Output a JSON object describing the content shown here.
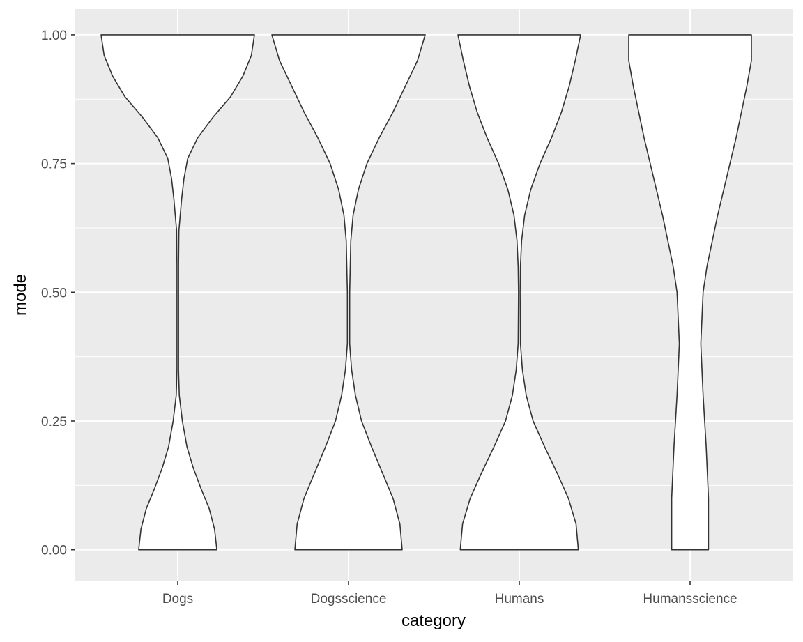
{
  "chart_data": {
    "type": "violin",
    "title": "",
    "xlabel": "category",
    "ylabel": "mode",
    "ylim": [
      -0.06,
      1.05
    ],
    "y_ticks": [
      {
        "value": 0.0,
        "label": "0.00"
      },
      {
        "value": 0.25,
        "label": "0.25"
      },
      {
        "value": 0.5,
        "label": "0.50"
      },
      {
        "value": 0.75,
        "label": "0.75"
      },
      {
        "value": 1.0,
        "label": "1.00"
      }
    ],
    "grid": true,
    "panel_background": "#ebebeb",
    "gridline_color": "#ffffff",
    "violin_fill": "#ffffff",
    "violin_outline": "#333333",
    "categories": [
      "Dogs",
      "Dogsscience",
      "Humans",
      "Humansscience"
    ],
    "violins": [
      {
        "category": "Dogs",
        "profile": [
          [
            0.0,
            0.51
          ],
          [
            0.04,
            0.48
          ],
          [
            0.08,
            0.41
          ],
          [
            0.12,
            0.3
          ],
          [
            0.16,
            0.2
          ],
          [
            0.2,
            0.12
          ],
          [
            0.25,
            0.06
          ],
          [
            0.3,
            0.02
          ],
          [
            0.35,
            0.01
          ],
          [
            0.45,
            0.01
          ],
          [
            0.55,
            0.01
          ],
          [
            0.62,
            0.015
          ],
          [
            0.68,
            0.05
          ],
          [
            0.72,
            0.08
          ],
          [
            0.76,
            0.13
          ],
          [
            0.8,
            0.26
          ],
          [
            0.84,
            0.46
          ],
          [
            0.88,
            0.69
          ],
          [
            0.92,
            0.85
          ],
          [
            0.96,
            0.96
          ],
          [
            1.0,
            1.0
          ]
        ]
      },
      {
        "category": "Dogsscience",
        "profile": [
          [
            0.0,
            0.7
          ],
          [
            0.05,
            0.67
          ],
          [
            0.1,
            0.58
          ],
          [
            0.15,
            0.44
          ],
          [
            0.2,
            0.3
          ],
          [
            0.25,
            0.17
          ],
          [
            0.3,
            0.09
          ],
          [
            0.35,
            0.04
          ],
          [
            0.4,
            0.015
          ],
          [
            0.5,
            0.015
          ],
          [
            0.6,
            0.03
          ],
          [
            0.65,
            0.06
          ],
          [
            0.7,
            0.13
          ],
          [
            0.75,
            0.24
          ],
          [
            0.8,
            0.4
          ],
          [
            0.85,
            0.58
          ],
          [
            0.9,
            0.74
          ],
          [
            0.95,
            0.9
          ],
          [
            1.0,
            1.0
          ]
        ]
      },
      {
        "category": "Humans",
        "profile": [
          [
            0.0,
            0.77
          ],
          [
            0.05,
            0.74
          ],
          [
            0.1,
            0.64
          ],
          [
            0.15,
            0.49
          ],
          [
            0.2,
            0.33
          ],
          [
            0.25,
            0.18
          ],
          [
            0.3,
            0.09
          ],
          [
            0.35,
            0.04
          ],
          [
            0.4,
            0.015
          ],
          [
            0.5,
            0.01
          ],
          [
            0.55,
            0.015
          ],
          [
            0.6,
            0.03
          ],
          [
            0.65,
            0.07
          ],
          [
            0.7,
            0.15
          ],
          [
            0.75,
            0.27
          ],
          [
            0.8,
            0.42
          ],
          [
            0.85,
            0.55
          ],
          [
            0.9,
            0.65
          ],
          [
            0.95,
            0.73
          ],
          [
            1.0,
            0.8
          ]
        ]
      },
      {
        "category": "Humansscience",
        "profile": [
          [
            0.0,
            0.24
          ],
          [
            0.1,
            0.24
          ],
          [
            0.2,
            0.21
          ],
          [
            0.3,
            0.17
          ],
          [
            0.4,
            0.14
          ],
          [
            0.5,
            0.17
          ],
          [
            0.55,
            0.22
          ],
          [
            0.6,
            0.29
          ],
          [
            0.65,
            0.36
          ],
          [
            0.7,
            0.44
          ],
          [
            0.75,
            0.52
          ],
          [
            0.8,
            0.6
          ],
          [
            0.85,
            0.67
          ],
          [
            0.9,
            0.74
          ],
          [
            0.95,
            0.8
          ],
          [
            1.0,
            0.8
          ]
        ]
      }
    ]
  }
}
